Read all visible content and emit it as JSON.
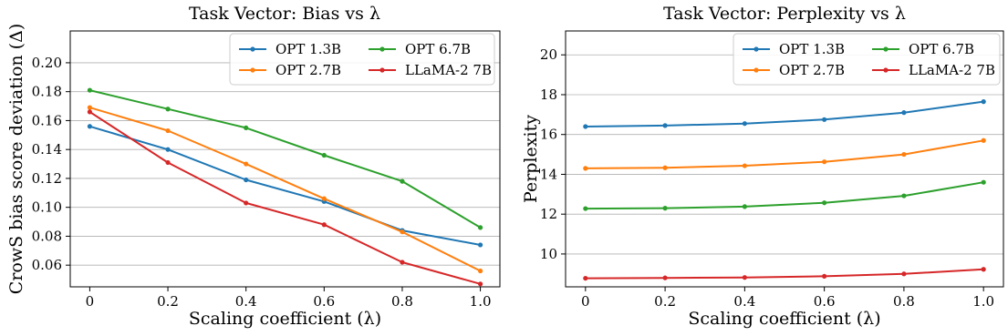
{
  "chart_data": [
    {
      "type": "line",
      "title": "Task Vector: Bias vs λ",
      "xlabel": "Scaling coefficient (λ)",
      "ylabel": "CrowS bias score deviation (Δ)",
      "x": [
        0,
        0.2,
        0.4,
        0.6,
        0.8,
        1.0
      ],
      "x_tick_labels": [
        "0",
        "0.2",
        "0.4",
        "0.6",
        "0.8",
        "1.0"
      ],
      "y_ticks": [
        0.06,
        0.08,
        0.1,
        0.12,
        0.14,
        0.16,
        0.18,
        0.2
      ],
      "y_tick_labels": [
        "0.06",
        "0.08",
        "0.10",
        "0.12",
        "0.14",
        "0.16",
        "0.18",
        "0.20"
      ],
      "xlim": [
        -0.05,
        1.05
      ],
      "ylim": [
        0.045,
        0.222
      ],
      "grid": "horizontal",
      "legend_position": "top-right",
      "series": [
        {
          "name": "OPT 1.3B",
          "color": "#1f77b4",
          "values": [
            0.156,
            0.14,
            0.119,
            0.104,
            0.084,
            0.074
          ]
        },
        {
          "name": "OPT 2.7B",
          "color": "#ff7f0e",
          "values": [
            0.169,
            0.153,
            0.13,
            0.106,
            0.083,
            0.056
          ]
        },
        {
          "name": "OPT 6.7B",
          "color": "#2ca02c",
          "values": [
            0.181,
            0.168,
            0.155,
            0.136,
            0.118,
            0.086
          ]
        },
        {
          "name": "LLaMA-2 7B",
          "color": "#d62728",
          "values": [
            0.166,
            0.131,
            0.103,
            0.088,
            0.062,
            0.047
          ]
        }
      ]
    },
    {
      "type": "line",
      "title": "Task Vector: Perplexity vs λ",
      "xlabel": "Scaling coefficient (λ)",
      "ylabel": "Perplexity",
      "x": [
        0,
        0.2,
        0.4,
        0.6,
        0.8,
        1.0
      ],
      "x_tick_labels": [
        "0",
        "0.2",
        "0.4",
        "0.6",
        "0.8",
        "1.0"
      ],
      "y_ticks": [
        10,
        12,
        14,
        16,
        18,
        20
      ],
      "y_tick_labels": [
        "10",
        "12",
        "14",
        "16",
        "18",
        "20"
      ],
      "xlim": [
        -0.05,
        1.05
      ],
      "ylim": [
        8.35,
        21.2
      ],
      "grid": "horizontal",
      "legend_position": "top-right",
      "series": [
        {
          "name": "OPT 1.3B",
          "color": "#1f77b4",
          "values": [
            16.4,
            16.45,
            16.55,
            16.75,
            17.1,
            17.65
          ]
        },
        {
          "name": "OPT 2.7B",
          "color": "#ff7f0e",
          "values": [
            14.3,
            14.33,
            14.43,
            14.63,
            15.0,
            15.7
          ]
        },
        {
          "name": "OPT 6.7B",
          "color": "#2ca02c",
          "values": [
            12.28,
            12.3,
            12.38,
            12.57,
            12.92,
            13.6
          ]
        },
        {
          "name": "LLaMA-2 7B",
          "color": "#d62728",
          "values": [
            8.78,
            8.8,
            8.82,
            8.88,
            9.0,
            9.23
          ]
        }
      ]
    }
  ]
}
